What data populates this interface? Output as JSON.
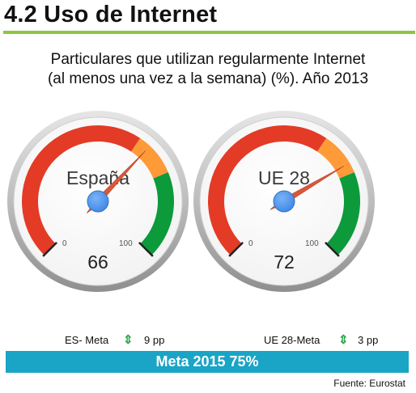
{
  "header": {
    "title": "4.2 Uso de Internet"
  },
  "subtitle": {
    "line1": "Particulares que utilizan regularmente Internet",
    "line2": "(al menos una vez a la semana) (%). Año 2013"
  },
  "colors": {
    "red": "#e33b26",
    "orange": "#ff9a38",
    "green": "#0c9a3b",
    "needle": "#d9573a",
    "hub": "#3e87e6",
    "accent_bar": "#1aa4c6",
    "header_rule": "#8dc63f"
  },
  "chart_data": [
    {
      "type": "gauge",
      "label": "España",
      "value": 66,
      "min": 0,
      "max": 100,
      "min_label": "0",
      "max_label": "100",
      "bands": [
        {
          "from": 0,
          "to": 62.5,
          "color": "red"
        },
        {
          "from": 62.5,
          "to": 75,
          "color": "orange"
        },
        {
          "from": 75,
          "to": 100,
          "color": "green"
        }
      ]
    },
    {
      "type": "gauge",
      "label": "UE 28",
      "value": 72,
      "min": 0,
      "max": 100,
      "min_label": "0",
      "max_label": "100",
      "bands": [
        {
          "from": 0,
          "to": 62.5,
          "color": "red"
        },
        {
          "from": 62.5,
          "to": 75,
          "color": "orange"
        },
        {
          "from": 75,
          "to": 100,
          "color": "green"
        }
      ]
    }
  ],
  "stats": [
    {
      "label": "ES- Meta",
      "icon": "up-down-arrow-icon",
      "glyph": "⇕",
      "value": "9 pp"
    },
    {
      "label": "UE 28-Meta",
      "icon": "up-down-arrow-icon",
      "glyph": "⇕",
      "value": "3 pp"
    }
  ],
  "target_bar": {
    "text": "Meta 2015 75%"
  },
  "source": {
    "text": "Fuente: Eurostat"
  }
}
